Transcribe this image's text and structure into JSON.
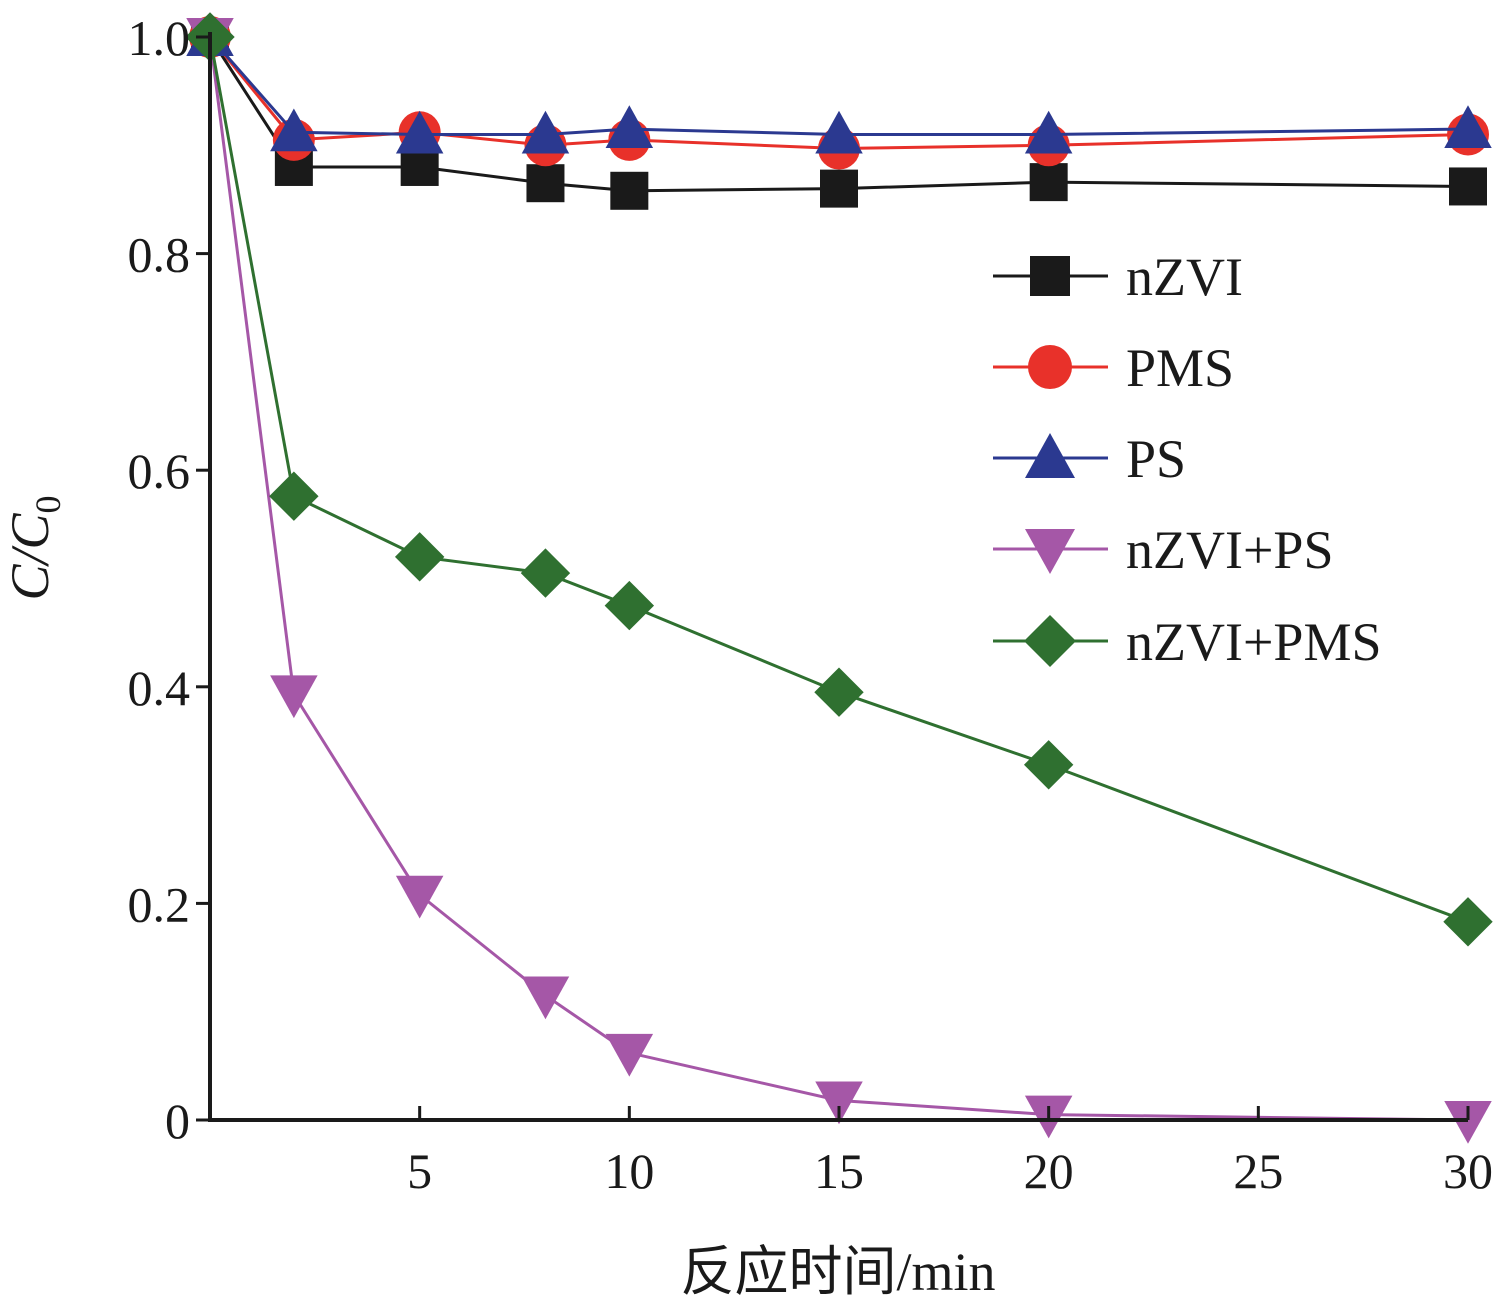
{
  "chart_data": {
    "type": "line",
    "title": "",
    "xlabel": "反应时间/min",
    "ylabel": "C/C0",
    "ylabel_parts": {
      "main": "C/C",
      "subscript": "0"
    },
    "xlim": [
      0,
      30
    ],
    "ylim": [
      0,
      1.0
    ],
    "x_ticks": [
      5,
      10,
      15,
      20,
      25,
      30
    ],
    "y_ticks": [
      {
        "value": 0,
        "label": "0"
      },
      {
        "value": 0.2,
        "label": "0.2"
      },
      {
        "value": 0.4,
        "label": "0.4"
      },
      {
        "value": 0.6,
        "label": "0.6"
      },
      {
        "value": 0.8,
        "label": "0.8"
      },
      {
        "value": 1.0,
        "label": "1.0"
      }
    ],
    "grid": false,
    "legend_position": "right",
    "x": [
      0,
      2,
      5,
      8,
      10,
      15,
      20,
      30
    ],
    "series": [
      {
        "name": "nZVI",
        "marker": "square",
        "line_color": "#1a1a1a",
        "marker_color": "#1a1a1a",
        "values": [
          1.0,
          0.88,
          0.88,
          0.865,
          0.858,
          0.86,
          0.866,
          0.862
        ]
      },
      {
        "name": "PMS",
        "marker": "circle",
        "line_color": "#e8312a",
        "marker_color": "#e8312a",
        "values": [
          1.0,
          0.905,
          0.912,
          0.9,
          0.905,
          0.897,
          0.9,
          0.91
        ]
      },
      {
        "name": "PS",
        "marker": "triangle-up",
        "line_color": "#2b3990",
        "marker_color": "#2b3990",
        "values": [
          1.0,
          0.912,
          0.91,
          0.91,
          0.915,
          0.91,
          0.91,
          0.915
        ]
      },
      {
        "name": "nZVI+PS",
        "marker": "triangle-down",
        "line_color": "#a557a7",
        "marker_color": "#a557a7",
        "values": [
          1.0,
          0.393,
          0.208,
          0.115,
          0.062,
          0.018,
          0.005,
          0.0
        ]
      },
      {
        "name": "nZVI+PMS",
        "marker": "diamond",
        "line_color": "#2f7030",
        "marker_color": "#2f7030",
        "values": [
          1.0,
          0.576,
          0.52,
          0.505,
          0.475,
          0.395,
          0.328,
          0.183
        ]
      }
    ]
  }
}
